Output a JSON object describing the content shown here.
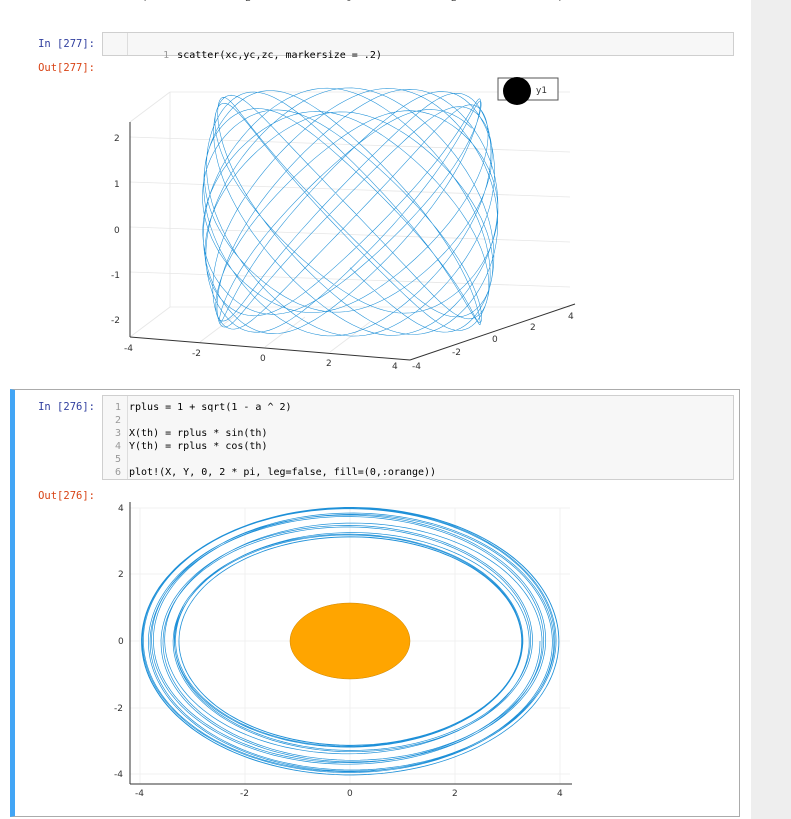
{
  "top_ticks": [
    "-4",
    "-2",
    "0",
    "2",
    "4"
  ],
  "cell1": {
    "in_prompt": "In [277]:",
    "out_prompt": "Out[277]:",
    "code_lines": [
      {
        "num": "1",
        "text": "scatter(xc,yc,zc, markersize = .2)"
      }
    ]
  },
  "plot1": {
    "legend_label": "y1",
    "z_ticks": [
      "2",
      "1",
      "0",
      "-1",
      "-2"
    ],
    "x_ticks": [
      "-4",
      "-2",
      "0",
      "2",
      "4"
    ],
    "y_ticks": [
      "-4",
      "-2",
      "0",
      "2",
      "4"
    ]
  },
  "cell2": {
    "in_prompt": "In [276]:",
    "out_prompt": "Out[276]:",
    "code_lines": [
      {
        "num": "1",
        "text": "rplus = 1 + sqrt(1 - a ^ 2)"
      },
      {
        "num": "2",
        "text": ""
      },
      {
        "num": "3",
        "text": "X(th) = rplus * sin(th)"
      },
      {
        "num": "4",
        "text": "Y(th) = rplus * cos(th)"
      },
      {
        "num": "5",
        "text": ""
      },
      {
        "num": "6",
        "text": "plot!(X, Y, 0, 2 * pi, leg=false, fill=(0,:orange))"
      }
    ]
  },
  "plot2": {
    "y_ticks": [
      "4",
      "2",
      "0",
      "-2",
      "-4"
    ],
    "x_ticks": [
      "-4",
      "-2",
      "0",
      "2",
      "4"
    ]
  },
  "colors": {
    "line": "#1e90d8",
    "fill": "#ffa500",
    "selected_bar": "#42a5f5"
  }
}
